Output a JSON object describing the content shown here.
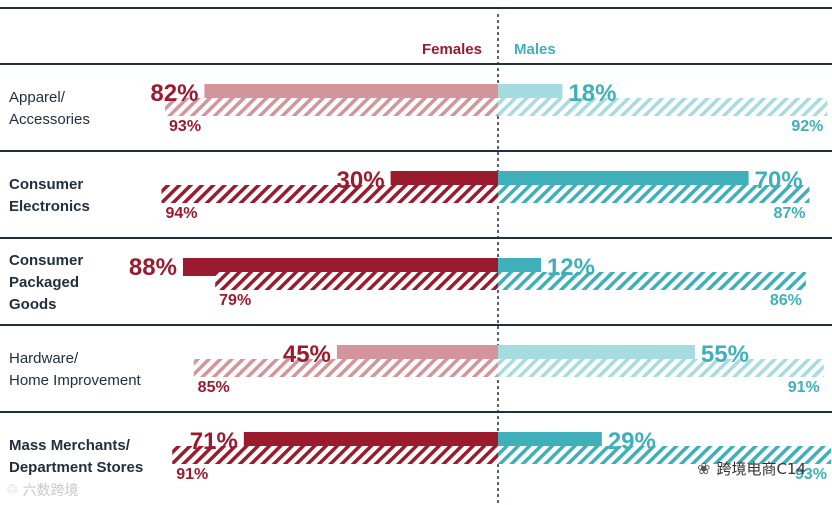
{
  "chart_data": {
    "type": "bar",
    "legend": {
      "females": "Females",
      "males": "Males"
    },
    "colors": {
      "female_dark": "#9b1b2e",
      "female_light": "#d4949c",
      "male_dark": "#3fb0ba",
      "male_light": "#a6dbe0",
      "divider": "#203040",
      "text_dark": "#203040"
    },
    "categories": [
      {
        "label": [
          "Apparel/",
          "Accessories"
        ],
        "bold": false,
        "light": true
      },
      {
        "label": [
          "Consumer",
          "Electronics"
        ],
        "bold": true,
        "light": false
      },
      {
        "label": [
          "Consumer",
          "Packaged",
          "Goods"
        ],
        "bold": true,
        "light": false
      },
      {
        "label": [
          "Hardware/",
          "Home Improvement"
        ],
        "bold": false,
        "light": true
      },
      {
        "label": [
          "Mass Merchants/",
          "Department Stores"
        ],
        "bold": true,
        "light": false
      }
    ],
    "series": [
      {
        "name": "Females (solid)",
        "values": [
          82,
          30,
          88,
          45,
          71
        ]
      },
      {
        "name": "Females (hatched)",
        "values": [
          93,
          94,
          79,
          85,
          91
        ]
      },
      {
        "name": "Males (solid)",
        "values": [
          18,
          70,
          12,
          55,
          29
        ]
      },
      {
        "name": "Males (hatched)",
        "values": [
          92,
          87,
          86,
          91,
          93
        ]
      }
    ],
    "value_suffix": "%",
    "xlim": [
      0,
      100
    ]
  },
  "watermarks": {
    "right_text": "跨境电商C14",
    "right_icon": "wechat-icon",
    "left_text": "六数跨境",
    "left_icon": "logo-icon"
  }
}
